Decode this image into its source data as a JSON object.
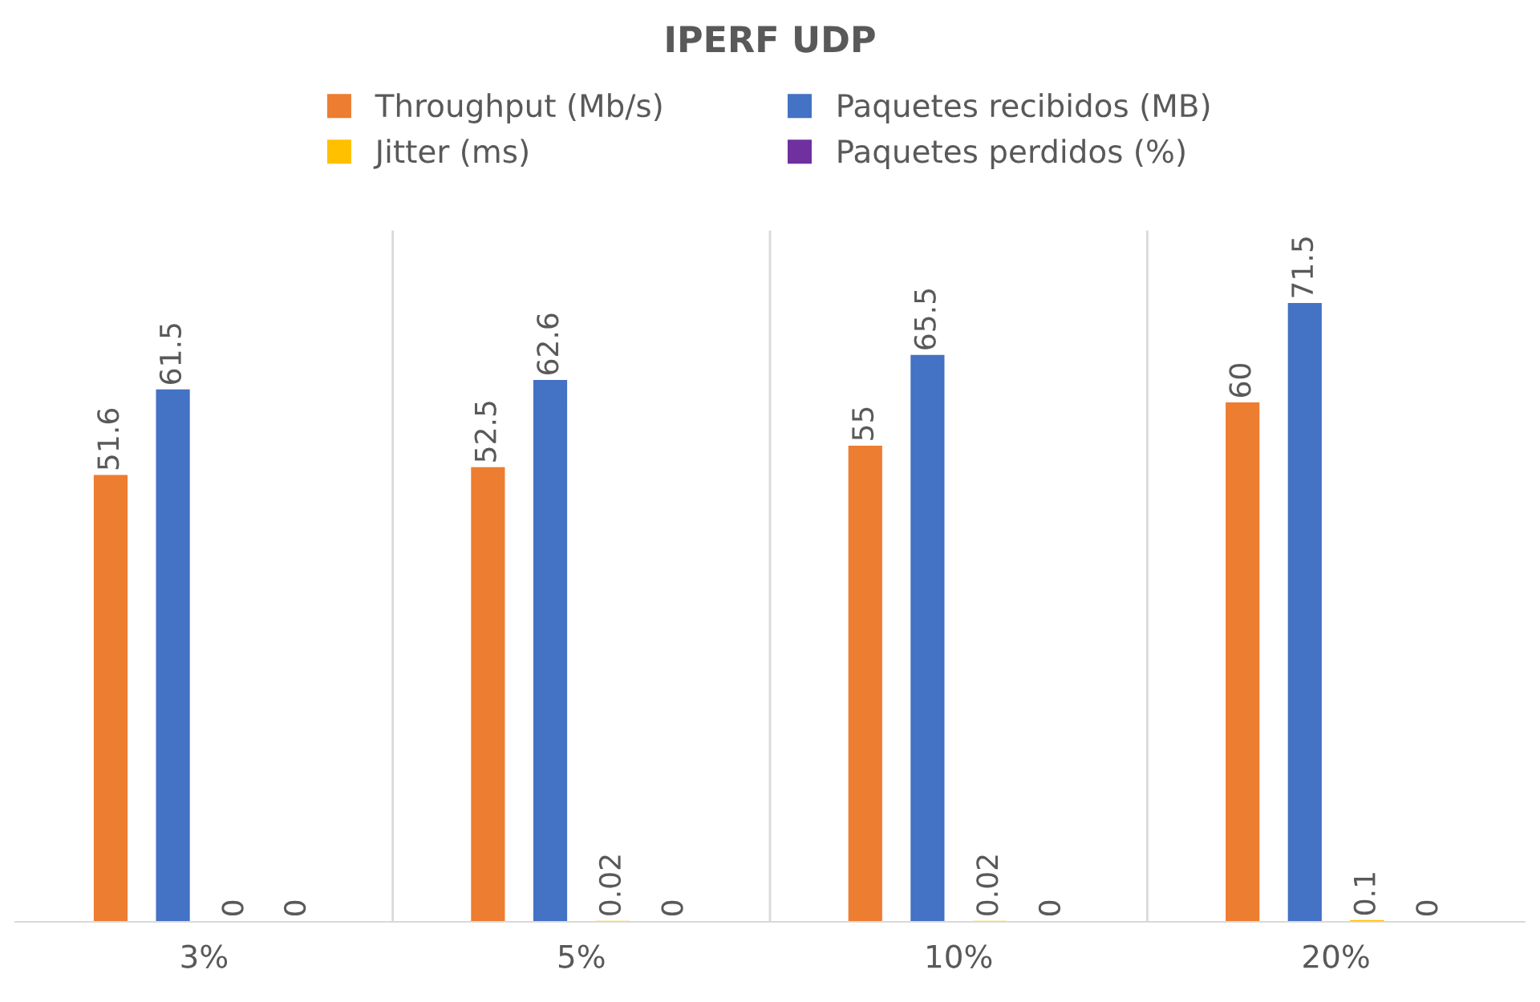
{
  "chart_data": {
    "type": "bar",
    "title": "IPERF UDP",
    "categories": [
      "3%",
      "5%",
      "10%",
      "20%"
    ],
    "series": [
      {
        "name": "Throughput (Mb/s)",
        "color": "#ed7d31",
        "values": [
          51.6,
          52.5,
          55,
          60
        ]
      },
      {
        "name": "Paquetes recibidos (MB)",
        "color": "#4472c4",
        "values": [
          61.5,
          62.6,
          65.5,
          71.5
        ]
      },
      {
        "name": "Jitter (ms)",
        "color": "#ffc000",
        "values": [
          0,
          0.02,
          0.02,
          0.1
        ]
      },
      {
        "name": "Paquetes perdidos (%)",
        "color": "#7030a0",
        "values": [
          0,
          0,
          0,
          0
        ]
      }
    ],
    "ylim": [
      0,
      80
    ],
    "tick_labels": "x",
    "grid": "x",
    "legend": "top",
    "data_labels": true
  }
}
